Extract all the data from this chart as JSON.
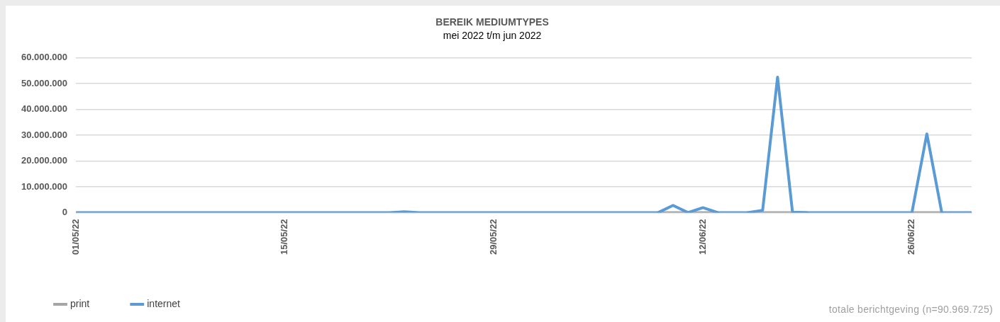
{
  "chart_data": {
    "type": "line",
    "title": "BEREIK MEDIUMTYPES",
    "subtitle": "mei 2022 t/m jun 2022",
    "annotations": [
      "totale berichtgeving (n=90.969.725)"
    ],
    "x": [
      "2022-05-01",
      "2022-05-02",
      "2022-05-03",
      "2022-05-04",
      "2022-05-05",
      "2022-05-06",
      "2022-05-07",
      "2022-05-08",
      "2022-05-09",
      "2022-05-10",
      "2022-05-11",
      "2022-05-12",
      "2022-05-13",
      "2022-05-14",
      "2022-05-15",
      "2022-05-16",
      "2022-05-17",
      "2022-05-18",
      "2022-05-19",
      "2022-05-20",
      "2022-05-21",
      "2022-05-22",
      "2022-05-23",
      "2022-05-24",
      "2022-05-25",
      "2022-05-26",
      "2022-05-27",
      "2022-05-28",
      "2022-05-29",
      "2022-05-30",
      "2022-05-31",
      "2022-06-01",
      "2022-06-02",
      "2022-06-03",
      "2022-06-04",
      "2022-06-05",
      "2022-06-06",
      "2022-06-07",
      "2022-06-08",
      "2022-06-09",
      "2022-06-10",
      "2022-06-11",
      "2022-06-12",
      "2022-06-13",
      "2022-06-14",
      "2022-06-15",
      "2022-06-16",
      "2022-06-17",
      "2022-06-18",
      "2022-06-19",
      "2022-06-20",
      "2022-06-21",
      "2022-06-22",
      "2022-06-23",
      "2022-06-24",
      "2022-06-25",
      "2022-06-26",
      "2022-06-27",
      "2022-06-28",
      "2022-06-29",
      "2022-06-30"
    ],
    "series": [
      {
        "name": "print",
        "color": "#a5a5a5",
        "values": [
          null,
          null,
          null,
          null,
          null,
          null,
          null,
          null,
          null,
          null,
          null,
          null,
          null,
          null,
          null,
          null,
          null,
          null,
          null,
          null,
          null,
          null,
          null,
          null,
          null,
          null,
          null,
          null,
          null,
          null,
          null,
          null,
          null,
          null,
          null,
          null,
          null,
          null,
          null,
          0,
          0,
          0,
          0,
          0,
          null,
          0,
          0,
          0,
          0,
          0,
          null,
          null,
          null,
          null,
          null,
          null,
          0,
          0,
          0,
          null,
          null
        ]
      },
      {
        "name": "internet",
        "color": "#5b9bd5",
        "values": [
          0,
          0,
          0,
          0,
          0,
          0,
          0,
          0,
          0,
          0,
          0,
          0,
          0,
          0,
          0,
          0,
          0,
          0,
          0,
          0,
          0,
          0,
          300000,
          0,
          0,
          0,
          0,
          0,
          0,
          0,
          0,
          0,
          0,
          0,
          0,
          0,
          0,
          0,
          0,
          0,
          2800000,
          0,
          1900000,
          0,
          0,
          0,
          900000,
          52500000,
          200000,
          0,
          0,
          0,
          0,
          0,
          0,
          0,
          0,
          30500000,
          0,
          0,
          0
        ]
      }
    ],
    "xlim": [
      "2022-05-01",
      "2022-06-30"
    ],
    "xticks": [
      {
        "value": "2022-05-01",
        "label": "01/05/22"
      },
      {
        "value": "2022-05-15",
        "label": "15/05/22"
      },
      {
        "value": "2022-05-29",
        "label": "29/05/22"
      },
      {
        "value": "2022-06-12",
        "label": "12/06/22"
      },
      {
        "value": "2022-06-26",
        "label": "26/06/22"
      }
    ],
    "ylim": [
      0,
      60000000
    ],
    "yticks": [
      {
        "value": 0,
        "label": "0"
      },
      {
        "value": 10000000,
        "label": "10.000.000"
      },
      {
        "value": 20000000,
        "label": "20.000.000"
      },
      {
        "value": 30000000,
        "label": "30.000.000"
      },
      {
        "value": 40000000,
        "label": "40.000.000"
      },
      {
        "value": 50000000,
        "label": "50.000.000"
      },
      {
        "value": 60000000,
        "label": "60.000.000"
      }
    ],
    "grid": "y",
    "legend": "bottom left",
    "marker": "none",
    "line_style": "solid"
  }
}
